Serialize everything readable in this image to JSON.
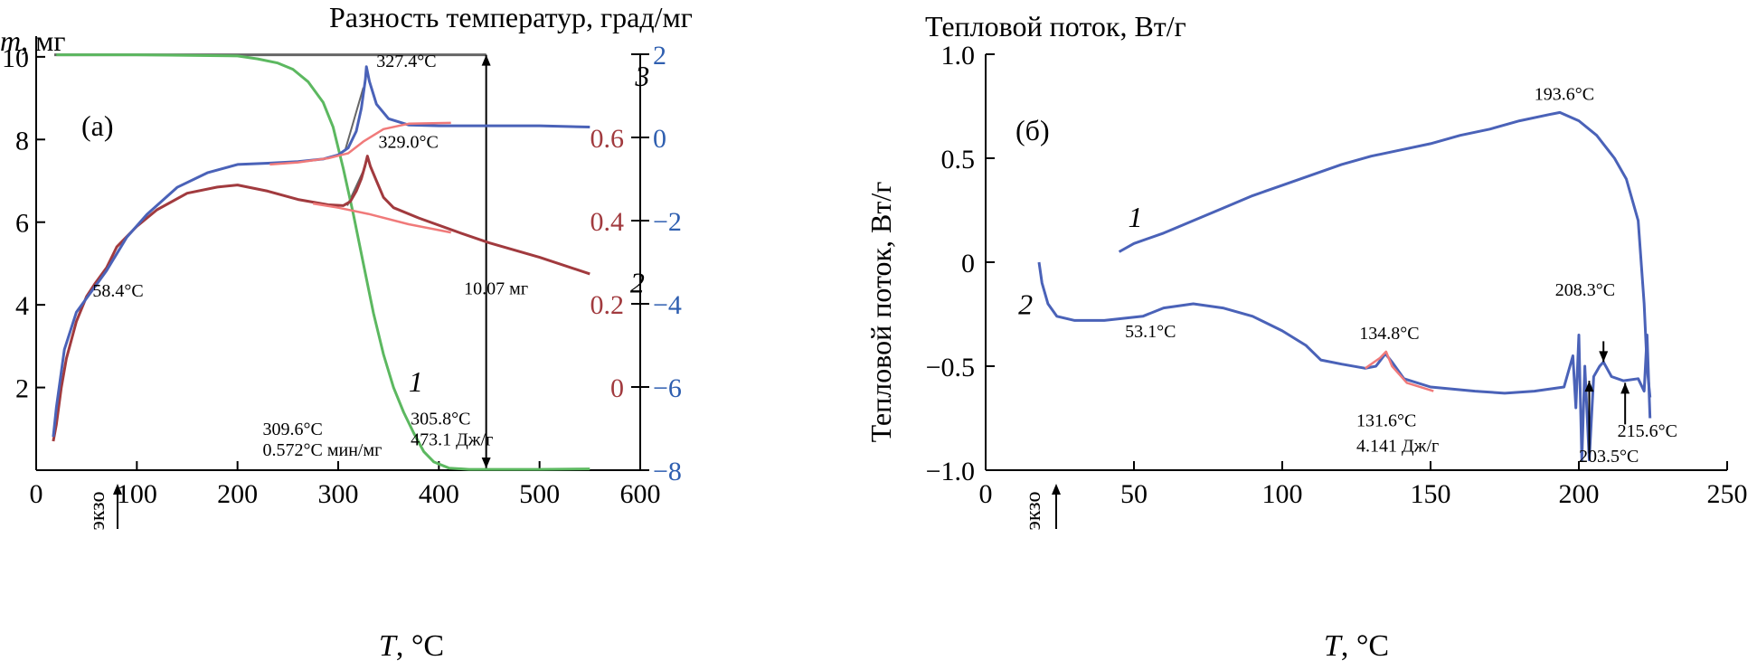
{
  "colors": {
    "mass": "#5cb860",
    "dt": "#a13a3e",
    "dt_marker": "#f07a7a",
    "heat": "#4a62b8",
    "axis_right_outer": "#2f5fb0",
    "axis_mid": "#a13a3e",
    "annotation": "#000000",
    "tangent": "#666666"
  },
  "chart_data": [
    {
      "panel": "(а)",
      "type": "line",
      "xlabel_var": "T",
      "xlabel_unit": ", °C",
      "xticks": [
        0,
        100,
        200,
        300,
        400,
        500,
        600
      ],
      "xlim": [
        0,
        600
      ],
      "ylabel_left_var": "m",
      "ylabel_left_unit": ", мг",
      "yticks_left": [
        2,
        4,
        6,
        8,
        10
      ],
      "ylim_left": [
        0,
        10.5
      ],
      "ylabel_mid": "Разность температур, град/мг",
      "yticks_mid": [
        0,
        0.2,
        0.4,
        0.6
      ],
      "ylabel_right": "Тепловой поток, Вт/г",
      "yticks_right": [
        2,
        0,
        -2,
        -4,
        -6,
        -8
      ],
      "ylim_right": [
        -8,
        2
      ],
      "exo_label": "экзо",
      "series": [
        {
          "name": "1",
          "axis": "left",
          "color_key": "mass",
          "points": [
            [
              20,
              10.05
            ],
            [
              100,
              10.05
            ],
            [
              200,
              10.02
            ],
            [
              220,
              9.95
            ],
            [
              240,
              9.85
            ],
            [
              255,
              9.7
            ],
            [
              270,
              9.4
            ],
            [
              285,
              8.9
            ],
            [
              295,
              8.3
            ],
            [
              305,
              7.3
            ],
            [
              315,
              6.2
            ],
            [
              325,
              5.0
            ],
            [
              335,
              3.8
            ],
            [
              345,
              2.8
            ],
            [
              355,
              2.0
            ],
            [
              365,
              1.4
            ],
            [
              375,
              0.9
            ],
            [
              385,
              0.45
            ],
            [
              395,
              0.2
            ],
            [
              410,
              0.05
            ],
            [
              430,
              0.02
            ],
            [
              500,
              0.02
            ],
            [
              550,
              0.03
            ]
          ]
        },
        {
          "name": "2",
          "axis": "left",
          "color_key": "dt",
          "points": [
            [
              17,
              0.7
            ],
            [
              20,
              1.1
            ],
            [
              25,
              2.0
            ],
            [
              30,
              2.7
            ],
            [
              40,
              3.6
            ],
            [
              50,
              4.2
            ],
            [
              58,
              4.5
            ],
            [
              70,
              4.9
            ],
            [
              80,
              5.4
            ],
            [
              100,
              5.9
            ],
            [
              120,
              6.3
            ],
            [
              150,
              6.7
            ],
            [
              180,
              6.85
            ],
            [
              200,
              6.9
            ],
            [
              230,
              6.75
            ],
            [
              260,
              6.55
            ],
            [
              290,
              6.42
            ],
            [
              305,
              6.4
            ],
            [
              312,
              6.5
            ],
            [
              318,
              6.75
            ],
            [
              323,
              7.05
            ],
            [
              327,
              7.4
            ],
            [
              329,
              7.6
            ],
            [
              332,
              7.35
            ],
            [
              338,
              7.0
            ],
            [
              345,
              6.6
            ],
            [
              355,
              6.35
            ],
            [
              380,
              6.1
            ],
            [
              420,
              5.75
            ],
            [
              450,
              5.5
            ],
            [
              500,
              5.15
            ],
            [
              550,
              4.75
            ]
          ]
        },
        {
          "name": "3",
          "axis": "right",
          "color_key": "heat",
          "points": [
            [
              17,
              -7.2
            ],
            [
              20,
              -6.5
            ],
            [
              28,
              -5.1
            ],
            [
              40,
              -4.2
            ],
            [
              58,
              -3.6
            ],
            [
              70,
              -3.2
            ],
            [
              90,
              -2.4
            ],
            [
              110,
              -1.85
            ],
            [
              140,
              -1.2
            ],
            [
              170,
              -0.85
            ],
            [
              200,
              -0.65
            ],
            [
              230,
              -0.62
            ],
            [
              260,
              -0.58
            ],
            [
              285,
              -0.52
            ],
            [
              300,
              -0.42
            ],
            [
              310,
              -0.25
            ],
            [
              318,
              0.15
            ],
            [
              323,
              0.7
            ],
            [
              327,
              1.4
            ],
            [
              328,
              1.7
            ],
            [
              331,
              1.35
            ],
            [
              338,
              0.8
            ],
            [
              350,
              0.45
            ],
            [
              370,
              0.3
            ],
            [
              400,
              0.28
            ],
            [
              450,
              0.28
            ],
            [
              500,
              0.28
            ],
            [
              550,
              0.25
            ]
          ]
        },
        {
          "name": "",
          "axis": "right",
          "color_key": "dt_marker",
          "points": [
            [
              232,
              -0.65
            ],
            [
              260,
              -0.6
            ],
            [
              290,
              -0.5
            ],
            [
              310,
              -0.38
            ],
            [
              325,
              -0.1
            ],
            [
              345,
              0.2
            ],
            [
              370,
              0.33
            ],
            [
              412,
              0.35
            ]
          ]
        },
        {
          "name": "",
          "axis": "left",
          "color_key": "dt_marker",
          "points": [
            [
              275,
              6.45
            ],
            [
              300,
              6.35
            ],
            [
              330,
              6.2
            ],
            [
              370,
              5.95
            ],
            [
              412,
              5.75
            ]
          ]
        }
      ],
      "annotations": [
        {
          "text": "327.4°C",
          "x": 338,
          "y_right": 1.7
        },
        {
          "text": "329.0°C",
          "x": 340,
          "y_left": 7.8
        },
        {
          "text": "58.4°C",
          "x": 56,
          "y_left": 4.2
        },
        {
          "text": "10.07 мг",
          "x": 425,
          "y_left": 4.25
        },
        {
          "text": "309.6°C",
          "x": 225,
          "y_left": 0.85
        },
        {
          "text": "0.572°C мин/мг",
          "x": 225,
          "y_left": 0.35
        },
        {
          "text": "305.8°C",
          "x": 372,
          "y_left": 1.1
        },
        {
          "text": "473.1 Дж/г",
          "x": 372,
          "y_left": 0.6
        }
      ],
      "series_labels": [
        {
          "text": "1",
          "x": 370,
          "y_left": 1.9
        },
        {
          "text": "2",
          "x": 590,
          "y_left": 4.3
        },
        {
          "text": "3",
          "x": 595,
          "y_left": 9.3
        }
      ]
    },
    {
      "panel": "(б)",
      "type": "line",
      "xlabel_var": "T",
      "xlabel_unit": ", °C",
      "xticks": [
        0,
        50,
        100,
        150,
        200,
        250
      ],
      "xlim": [
        0,
        250
      ],
      "ylabel": "Тепловой поток, Вт/г",
      "yticks": [
        1.0,
        0.5,
        0,
        -0.5,
        -1.0
      ],
      "ylim": [
        -1.0,
        1.0
      ],
      "exo_label": "экзо",
      "series": [
        {
          "name": "1",
          "color_key": "heat",
          "points": [
            [
              45,
              0.05
            ],
            [
              50,
              0.09
            ],
            [
              60,
              0.14
            ],
            [
              70,
              0.2
            ],
            [
              80,
              0.26
            ],
            [
              90,
              0.32
            ],
            [
              100,
              0.37
            ],
            [
              110,
              0.42
            ],
            [
              120,
              0.47
            ],
            [
              130,
              0.51
            ],
            [
              140,
              0.54
            ],
            [
              150,
              0.57
            ],
            [
              160,
              0.61
            ],
            [
              170,
              0.64
            ],
            [
              180,
              0.68
            ],
            [
              190,
              0.71
            ],
            [
              193.6,
              0.72
            ],
            [
              200,
              0.68
            ],
            [
              206,
              0.61
            ],
            [
              212,
              0.5
            ],
            [
              216,
              0.4
            ],
            [
              220,
              0.2
            ],
            [
              222,
              -0.2
            ],
            [
              223,
              -0.5
            ],
            [
              224,
              -0.65
            ]
          ]
        },
        {
          "name": "2",
          "color_key": "heat",
          "points": [
            [
              18,
              0.0
            ],
            [
              19,
              -0.1
            ],
            [
              21,
              -0.2
            ],
            [
              24,
              -0.26
            ],
            [
              30,
              -0.28
            ],
            [
              40,
              -0.28
            ],
            [
              53,
              -0.26
            ],
            [
              60,
              -0.22
            ],
            [
              70,
              -0.2
            ],
            [
              80,
              -0.22
            ],
            [
              90,
              -0.26
            ],
            [
              100,
              -0.33
            ],
            [
              108,
              -0.4
            ],
            [
              113,
              -0.47
            ],
            [
              120,
              -0.49
            ],
            [
              128,
              -0.51
            ],
            [
              131.6,
              -0.5
            ],
            [
              134.8,
              -0.44
            ],
            [
              137,
              -0.48
            ],
            [
              141,
              -0.56
            ],
            [
              150,
              -0.6
            ],
            [
              165,
              -0.62
            ],
            [
              175,
              -0.63
            ],
            [
              185,
              -0.62
            ],
            [
              195,
              -0.6
            ],
            [
              198,
              -0.45
            ],
            [
              199,
              -0.7
            ],
            [
              200,
              -0.35
            ],
            [
              201,
              -0.95
            ],
            [
              202,
              -0.5
            ],
            [
              203.5,
              -0.95
            ],
            [
              205,
              -0.55
            ],
            [
              207,
              -0.5
            ],
            [
              208.3,
              -0.48
            ],
            [
              211,
              -0.55
            ],
            [
              215,
              -0.57
            ],
            [
              220,
              -0.56
            ],
            [
              222,
              -0.62
            ],
            [
              223,
              -0.35
            ],
            [
              224,
              -0.75
            ]
          ]
        },
        {
          "name": "",
          "color_key": "dt_marker",
          "points": [
            [
              128,
              -0.51
            ],
            [
              133,
              -0.46
            ],
            [
              135,
              -0.43
            ],
            [
              137,
              -0.5
            ],
            [
              142,
              -0.58
            ],
            [
              151,
              -0.62
            ]
          ]
        }
      ],
      "annotations": [
        {
          "text": "193.6°C",
          "x": 185,
          "y": 0.78
        },
        {
          "text": "53.1°C",
          "x": 47,
          "y": -0.36
        },
        {
          "text": "134.8°C",
          "x": 126,
          "y": -0.37
        },
        {
          "text": "208.3°C",
          "x": 192,
          "y": -0.16
        },
        {
          "text": "131.6°C",
          "x": 125,
          "y": -0.79
        },
        {
          "text": "4.141 Дж/г",
          "x": 125,
          "y": -0.91
        },
        {
          "text": "215.6°C",
          "x": 213,
          "y": -0.84
        },
        {
          "text": "203.5°C",
          "x": 200,
          "y": -0.96
        }
      ],
      "series_labels": [
        {
          "text": "1",
          "x": 48,
          "y": 0.17
        },
        {
          "text": "2",
          "x": 11,
          "y": -0.25
        }
      ]
    }
  ]
}
